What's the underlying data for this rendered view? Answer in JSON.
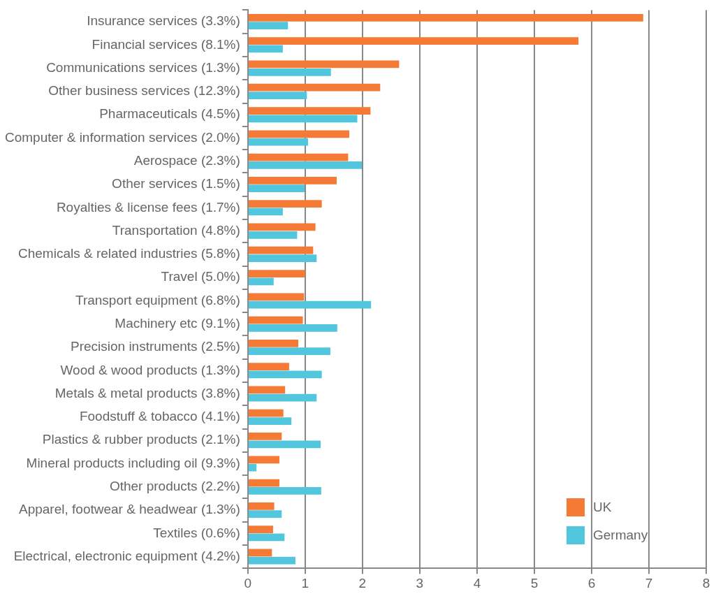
{
  "chart_data": {
    "type": "bar",
    "orientation": "horizontal",
    "categories": [
      "Insurance services (3.3%)",
      "Financial services (8.1%)",
      "Communications services (1.3%)",
      "Other business services (12.3%)",
      "Pharmaceuticals (4.5%)",
      "Computer & information services (2.0%)",
      "Aerospace (2.3%)",
      "Other services (1.5%)",
      "Royalties & license fees (1.7%)",
      "Transportation (4.8%)",
      "Chemicals & related industries (5.8%)",
      "Travel (5.0%)",
      "Transport equipment (6.8%)",
      "Machinery etc (9.1%)",
      "Precision instruments (2.5%)",
      "Wood & wood products (1.3%)",
      "Metals & metal products (3.8%)",
      "Foodstuff & tobacco (4.1%)",
      "Plastics & rubber products (2.1%)",
      "Mineral products including oil (9.3%)",
      "Other products (2.2%)",
      "Apparel, footwear & headwear (1.3%)",
      "Textiles (0.6%)",
      "Electrical, electronic equipment (4.2%)"
    ],
    "series": [
      {
        "name": "UK",
        "color": "#f47a35",
        "values": [
          6.9,
          5.77,
          2.64,
          2.31,
          2.14,
          1.77,
          1.75,
          1.55,
          1.29,
          1.18,
          1.14,
          1.0,
          0.98,
          0.96,
          0.88,
          0.72,
          0.65,
          0.62,
          0.59,
          0.55,
          0.55,
          0.46,
          0.44,
          0.42
        ]
      },
      {
        "name": "Germany",
        "color": "#52c6dc",
        "values": [
          0.7,
          0.61,
          1.45,
          1.03,
          1.91,
          1.05,
          1.99,
          0.99,
          0.61,
          0.86,
          1.2,
          0.45,
          2.15,
          1.56,
          1.44,
          1.29,
          1.2,
          0.76,
          1.27,
          0.15,
          1.28,
          0.59,
          0.64,
          0.83
        ]
      }
    ],
    "xlim": [
      0,
      8
    ],
    "xticks": [
      0,
      1,
      2,
      3,
      4,
      5,
      6,
      7,
      8
    ],
    "grid": "x",
    "legend": "bottom right"
  }
}
